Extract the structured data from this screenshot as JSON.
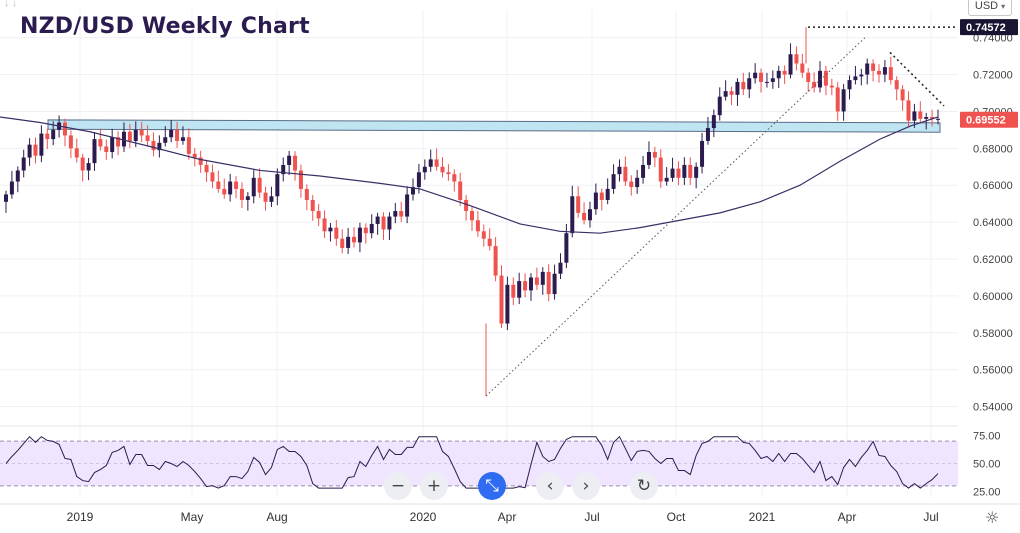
{
  "header": {
    "title": "NZD/USD Weekly Chart",
    "currency_selector": "USD",
    "top_arrows": "↓ ↓"
  },
  "toolbar": {
    "zoom_out": "−",
    "zoom_in": "+",
    "reset_view": "⤡",
    "scroll_left": "‹",
    "scroll_right": "›",
    "reload": "↻"
  },
  "settings_icon": "☼",
  "chart_data": [
    {
      "type": "candlestick",
      "title": "NZD/USD Weekly Chart",
      "ylim": [
        0.53,
        0.755
      ],
      "y_ticks": [
        "0.54000",
        "0.56000",
        "0.58000",
        "0.60000",
        "0.62000",
        "0.64000",
        "0.66000",
        "0.68000",
        "0.70000",
        "0.72000",
        "0.74000"
      ],
      "x_tick_labels": [
        "2019",
        "May",
        "Aug",
        "2020",
        "Apr",
        "Jul",
        "Oct",
        "2021",
        "Apr",
        "Jul"
      ],
      "price_markers": [
        {
          "label": "0.74572",
          "value": 0.74572,
          "style": "dark"
        },
        {
          "label": "0.69552",
          "value": 0.69552,
          "style": "red"
        }
      ],
      "colors": {
        "up": "#2c1b4f",
        "down": "#ef5350",
        "ma": "#3a2f66",
        "band_fill": "#bfe4f2",
        "band_edge": "#5a6d86"
      },
      "series": [
        {
          "name": "",
          "kind": "ohlc",
          "closes": [
            0.655,
            0.662,
            0.668,
            0.675,
            0.682,
            0.676,
            0.688,
            0.685,
            0.69,
            0.694,
            0.687,
            0.68,
            0.675,
            0.668,
            0.672,
            0.685,
            0.681,
            0.678,
            0.686,
            0.681,
            0.689,
            0.684,
            0.69,
            0.687,
            0.684,
            0.679,
            0.683,
            0.686,
            0.69,
            0.684,
            0.686,
            0.677,
            0.675,
            0.671,
            0.667,
            0.662,
            0.658,
            0.655,
            0.662,
            0.658,
            0.652,
            0.654,
            0.664,
            0.656,
            0.651,
            0.654,
            0.666,
            0.671,
            0.676,
            0.668,
            0.658,
            0.652,
            0.646,
            0.642,
            0.635,
            0.637,
            0.631,
            0.626,
            0.632,
            0.629,
            0.637,
            0.634,
            0.639,
            0.643,
            0.636,
            0.643,
            0.646,
            0.643,
            0.655,
            0.659,
            0.667,
            0.67,
            0.674,
            0.67,
            0.667,
            0.666,
            0.662,
            0.652,
            0.646,
            0.641,
            0.635,
            0.631,
            0.627,
            0.611,
            0.585,
            0.606,
            0.599,
            0.608,
            0.603,
            0.61,
            0.606,
            0.613,
            0.601,
            0.612,
            0.618,
            0.634,
            0.654,
            0.645,
            0.641,
            0.647,
            0.656,
            0.652,
            0.658,
            0.666,
            0.67,
            0.662,
            0.659,
            0.664,
            0.671,
            0.678,
            0.675,
            0.662,
            0.664,
            0.669,
            0.664,
            0.671,
            0.664,
            0.67,
            0.684,
            0.691,
            0.698,
            0.708,
            0.711,
            0.709,
            0.716,
            0.712,
            0.718,
            0.721,
            0.716,
            0.716,
            0.718,
            0.722,
            0.72,
            0.731,
            0.726,
            0.721,
            0.716,
            0.713,
            0.722,
            0.714,
            0.713,
            0.7,
            0.712,
            0.717,
            0.719,
            0.72,
            0.726,
            0.722,
            0.72,
            0.724,
            0.717,
            0.712,
            0.706,
            0.695,
            0.7,
            0.696,
            0.697,
            0.696,
            0.696
          ]
        },
        {
          "name": "",
          "kind": "moving_average"
        }
      ],
      "support_band": [
        0.692,
        0.696
      ],
      "trendlines": [
        "rising dotted",
        "falling dotted",
        "horizontal dotted at 0.74572"
      ]
    },
    {
      "type": "line",
      "title": "",
      "ylim": [
        20,
        80
      ],
      "y_ticks": [
        "25.00",
        "50.00",
        "75.00"
      ],
      "overbought_band": [
        30,
        70
      ],
      "colors": {
        "line": "#2c1b4f",
        "band_fill": "#f0e5ff"
      }
    }
  ]
}
